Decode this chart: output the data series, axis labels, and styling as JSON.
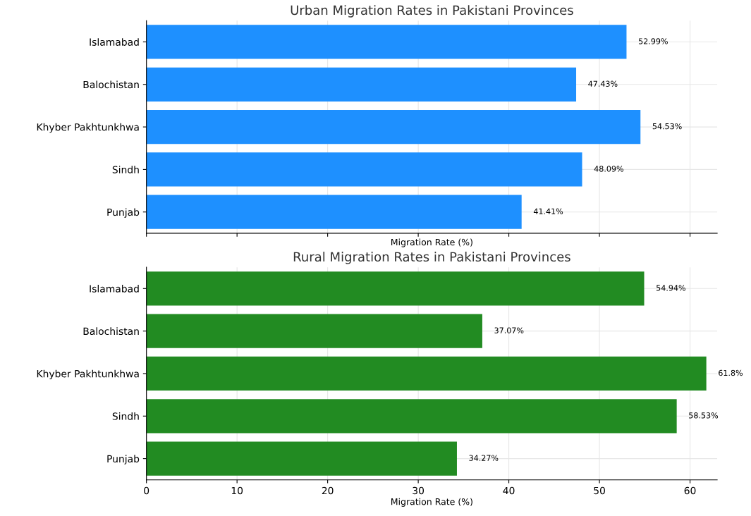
{
  "chart_data": [
    {
      "type": "bar",
      "orientation": "horizontal",
      "title": "Urban Migration Rates in Pakistani Provinces",
      "xlabel": "Migration Rate (%)",
      "categories": [
        "Islamabad",
        "Balochistan",
        "Khyber Pakhtunkhwa",
        "Sindh",
        "Punjab"
      ],
      "values": [
        52.99,
        47.43,
        54.53,
        48.09,
        41.41
      ],
      "value_labels": [
        "52.99%",
        "47.43%",
        "54.53%",
        "48.09%",
        "41.41%"
      ],
      "color": "#1e90ff",
      "xlim": [
        0,
        63
      ],
      "xticks": [
        0,
        10,
        20,
        30,
        40,
        50,
        60
      ],
      "grid": true,
      "tick_labels": "y"
    },
    {
      "type": "bar",
      "orientation": "horizontal",
      "title": "Rural Migration Rates in Pakistani Provinces",
      "xlabel": "Migration Rate (%)",
      "categories": [
        "Islamabad",
        "Balochistan",
        "Khyber Pakhtunkhwa",
        "Sindh",
        "Punjab"
      ],
      "values": [
        54.94,
        37.07,
        61.8,
        58.53,
        34.27
      ],
      "value_labels": [
        "54.94%",
        "37.07%",
        "61.8%",
        "58.53%",
        "34.27%"
      ],
      "color": "#228b22",
      "xlim": [
        0,
        63
      ],
      "xticks": [
        0,
        10,
        20,
        30,
        40,
        50,
        60
      ],
      "grid": true
    }
  ]
}
